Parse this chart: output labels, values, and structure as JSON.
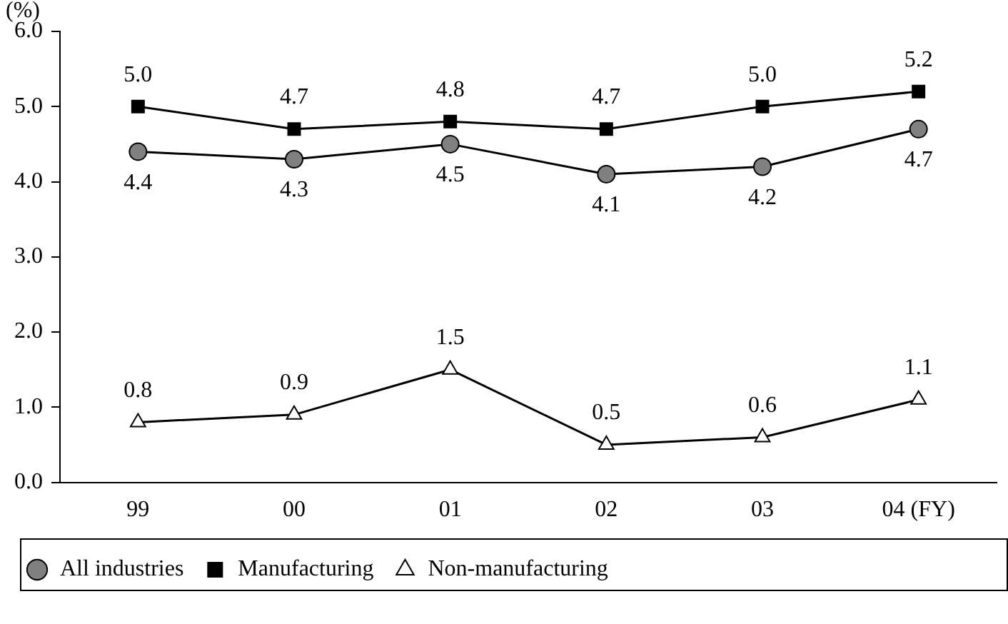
{
  "chart_data": {
    "type": "line",
    "ylabel": "(%)",
    "categories": [
      "99",
      "00",
      "01",
      "02",
      "03",
      "04 (FY)"
    ],
    "series": [
      {
        "name": "All industries",
        "color": "#808080",
        "marker": "circle",
        "values": [
          4.4,
          4.3,
          4.5,
          4.1,
          4.2,
          4.7
        ],
        "value_labels": [
          "4.4",
          "4.3",
          "4.5",
          "4.1",
          "4.2",
          "4.7"
        ]
      },
      {
        "name": "Manufacturing",
        "color": "#000000",
        "marker": "square",
        "values": [
          5.0,
          4.7,
          4.8,
          4.7,
          5.0,
          5.2
        ],
        "value_labels": [
          "5.0",
          "4.7",
          "4.8",
          "4.7",
          "5.0",
          "5.2"
        ]
      },
      {
        "name": "Non-manufacturing",
        "color": "#ffffff",
        "marker": "triangle",
        "values": [
          0.8,
          0.9,
          1.5,
          0.5,
          0.6,
          1.1
        ],
        "value_labels": [
          "0.8",
          "0.9",
          "1.5",
          "0.5",
          "0.6",
          "1.1"
        ]
      }
    ],
    "ylim": [
      0,
      6
    ],
    "yticks": [
      {
        "value": 0,
        "label": "0.0"
      },
      {
        "value": 1,
        "label": "1.0"
      },
      {
        "value": 2,
        "label": "2.0"
      },
      {
        "value": 3,
        "label": "3.0"
      },
      {
        "value": 4,
        "label": "4.0"
      },
      {
        "value": 5,
        "label": "5.0"
      },
      {
        "value": 6,
        "label": "6.0"
      }
    ],
    "grid": false,
    "legend": "bottom",
    "line_style": "solid"
  }
}
